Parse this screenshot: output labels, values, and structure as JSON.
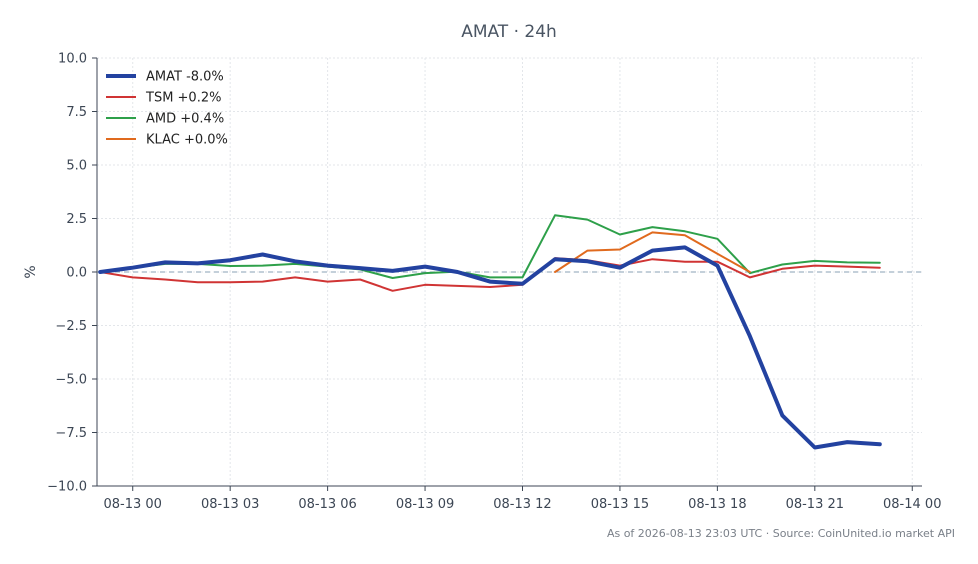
{
  "chart_data": {
    "type": "line",
    "title": "AMAT · 24h",
    "xlabel": "",
    "ylabel": "%",
    "ylim": [
      -10,
      10
    ],
    "yticks": [
      -10,
      -7.5,
      -5,
      -2.5,
      0,
      2.5,
      5,
      7.5,
      10
    ],
    "ytick_labels": [
      "−10.0",
      "−7.5",
      "−5.0",
      "−2.5",
      "0.0",
      "2.5",
      "5.0",
      "7.5",
      "10.0"
    ],
    "xlim": [
      -1.1,
      24.3
    ],
    "x_ticks": [
      {
        "x": 0,
        "label": "08-13 00"
      },
      {
        "x": 3,
        "label": "08-13 03"
      },
      {
        "x": 6,
        "label": "08-13 06"
      },
      {
        "x": 9,
        "label": "08-13 09"
      },
      {
        "x": 12,
        "label": "08-13 12"
      },
      {
        "x": 15,
        "label": "08-13 15"
      },
      {
        "x": 18,
        "label": "08-13 18"
      },
      {
        "x": 21,
        "label": "08-13 21"
      },
      {
        "x": 24,
        "label": "08-14 00"
      }
    ],
    "x_unit": "hours from 08-13 00:00",
    "grid": true,
    "zero_line": true,
    "legend_position": "top-left",
    "series": [
      {
        "name": "AMAT -8.0%",
        "color": "#2342a0",
        "width": 4,
        "x": [
          -1,
          0,
          1,
          2,
          3,
          4,
          5,
          6,
          7,
          8,
          9,
          10,
          11,
          12,
          13,
          14,
          15,
          16,
          17,
          18,
          19,
          20,
          21,
          22,
          23
        ],
        "y": [
          0.0,
          0.2,
          0.45,
          0.4,
          0.55,
          0.82,
          0.5,
          0.3,
          0.18,
          0.05,
          0.25,
          0.0,
          -0.45,
          -0.55,
          0.6,
          0.5,
          0.2,
          1.0,
          1.15,
          0.3,
          -3.0,
          -6.7,
          -8.2,
          -7.95,
          -8.05
        ]
      },
      {
        "name": "TSM +0.2%",
        "color": "#d03434",
        "width": 2,
        "x": [
          -1,
          0,
          1,
          2,
          3,
          4,
          5,
          6,
          7,
          8,
          9,
          10,
          11,
          12,
          13,
          14,
          15,
          16,
          17,
          18,
          19,
          20,
          21,
          22,
          23
        ],
        "y": [
          0.0,
          -0.25,
          -0.35,
          -0.48,
          -0.48,
          -0.45,
          -0.25,
          -0.45,
          -0.35,
          -0.88,
          -0.6,
          -0.65,
          -0.7,
          -0.6,
          0.65,
          0.55,
          0.3,
          0.6,
          0.48,
          0.48,
          -0.25,
          0.15,
          0.3,
          0.25,
          0.2
        ]
      },
      {
        "name": "AMD +0.4%",
        "color": "#2ea04a",
        "width": 2,
        "x": [
          -1,
          0,
          1,
          2,
          3,
          4,
          5,
          6,
          7,
          8,
          9,
          10,
          11,
          12,
          13,
          14,
          15,
          16,
          17,
          18,
          19,
          20,
          21,
          22,
          23
        ],
        "y": [
          0.0,
          0.2,
          0.38,
          0.38,
          0.28,
          0.3,
          0.38,
          0.25,
          0.12,
          -0.28,
          -0.05,
          0.02,
          -0.25,
          -0.25,
          2.65,
          2.45,
          1.75,
          2.1,
          1.9,
          1.55,
          -0.05,
          0.35,
          0.52,
          0.45,
          0.43
        ]
      },
      {
        "name": "KLAC +0.0%",
        "color": "#e06a1e",
        "width": 2,
        "x": [
          13,
          14,
          15,
          16,
          17,
          18,
          19
        ],
        "y": [
          0.0,
          1.0,
          1.05,
          1.85,
          1.72,
          0.85,
          0.0
        ]
      }
    ]
  },
  "footer": {
    "note": "As of 2026-08-13 23:03 UTC · Source: CoinUnited.io market API"
  },
  "colors": {
    "axis": "#3c4654",
    "grid": "#e3e6ea",
    "zero_line": "#8aa0b4",
    "title": "#4a5563"
  }
}
